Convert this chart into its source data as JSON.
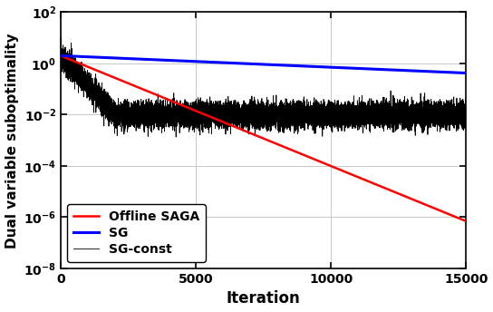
{
  "title": "",
  "xlabel": "Iteration",
  "ylabel": "Dual variable suboptimality",
  "xlim": [
    0,
    15000
  ],
  "ylim_log": [
    -8,
    2
  ],
  "x_ticks": [
    0,
    5000,
    10000,
    15000
  ],
  "y_ticks_exp": [
    -8,
    -6,
    -4,
    -2,
    0,
    2
  ],
  "n_iter": 15000,
  "saga_start": 2.0,
  "saga_end": 7e-07,
  "sg_start": 2.0,
  "sg_end": 0.42,
  "colors": {
    "saga": "#FF0000",
    "sg": "#0000FF",
    "sgconst": "#000000"
  },
  "legend_labels": [
    "Offline SAGA",
    "SG",
    "SG-const"
  ],
  "seed": 12345
}
